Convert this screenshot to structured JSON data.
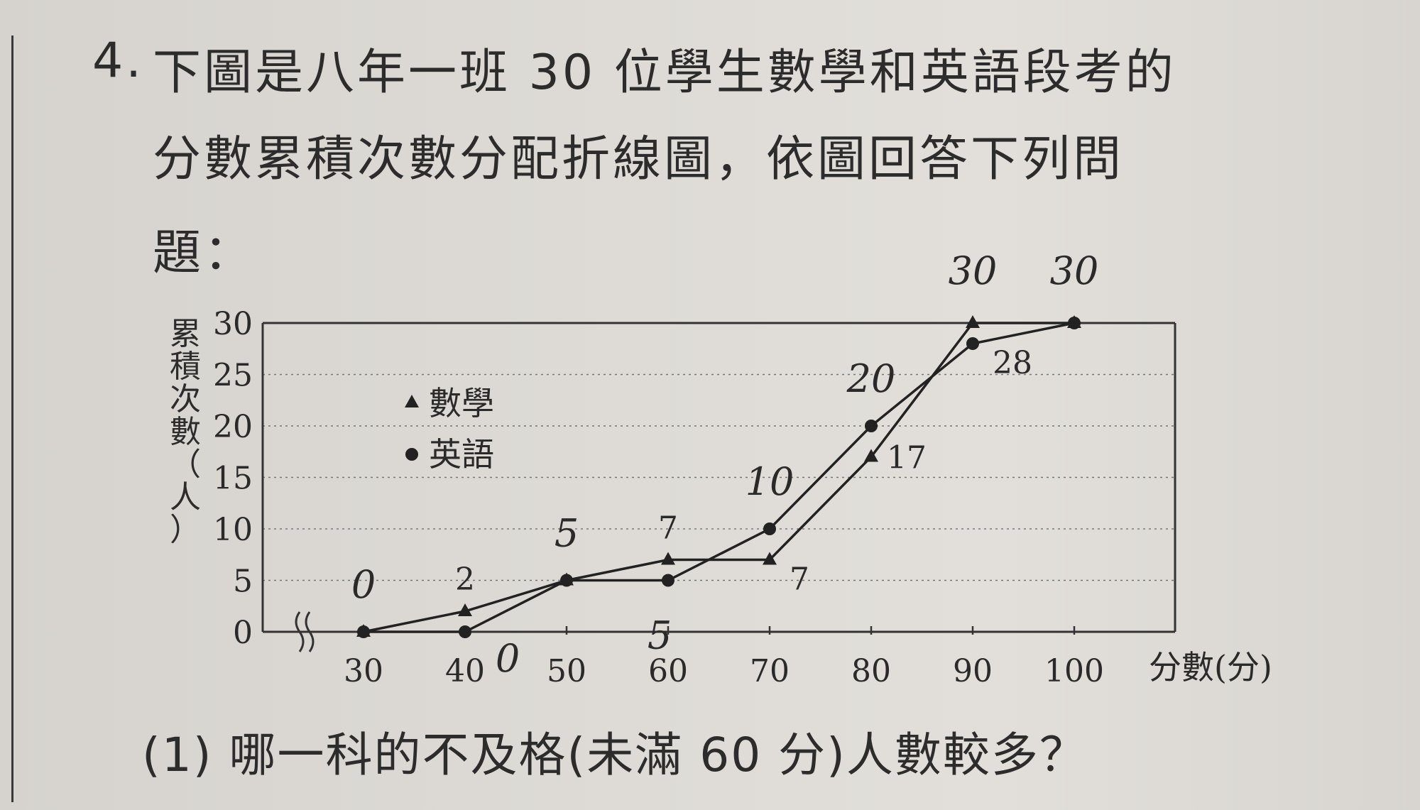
{
  "question": {
    "number": "4.",
    "line1": "下圖是八年一班 30 位學生數學和英語段考的",
    "line2": "分數累積次數分配折線圖，依圖回答下列問",
    "line3": "題：",
    "sub_question": "(1) 哪一科的不及格(未滿 60 分)人數較多？"
  },
  "chart_data": {
    "type": "line",
    "x": [
      30,
      40,
      50,
      60,
      70,
      80,
      90,
      100
    ],
    "xticklabels": [
      "30",
      "40",
      "50",
      "60",
      "70",
      "80",
      "90",
      "100"
    ],
    "xlabel": "分數(分)",
    "ylabel": "累積次數（人）",
    "ylim": [
      0,
      30
    ],
    "yticks": [
      0,
      5,
      10,
      15,
      20,
      25,
      30
    ],
    "axis_break": true,
    "grid": "horizontal dotted",
    "legend_position": "upper-left",
    "series": [
      {
        "name": "數學",
        "marker": "triangle",
        "values": [
          0,
          2,
          5,
          7,
          7,
          17,
          30,
          30
        ]
      },
      {
        "name": "英語",
        "marker": "circle",
        "values": [
          0,
          0,
          5,
          5,
          10,
          20,
          28,
          30
        ]
      }
    ],
    "printed_labels": [
      {
        "series": 0,
        "index": 1,
        "text": "2",
        "pos": "above"
      },
      {
        "series": 0,
        "index": 3,
        "text": "7",
        "pos": "above"
      },
      {
        "series": 0,
        "index": 4,
        "text": "7",
        "pos": "below-right"
      },
      {
        "series": 0,
        "index": 5,
        "text": "17",
        "pos": "right"
      },
      {
        "series": 1,
        "index": 6,
        "text": "28",
        "pos": "below-right"
      }
    ],
    "handwritten_labels": [
      {
        "x": 30,
        "text": "0",
        "pos": "above"
      },
      {
        "x": 40,
        "text": "0",
        "pos": "below-right"
      },
      {
        "x": 50,
        "text": "5",
        "pos": "above"
      },
      {
        "x": 60,
        "text": "5",
        "pos": "below"
      },
      {
        "x": 70,
        "text": "10",
        "pos": "above"
      },
      {
        "x": 80,
        "text": "20",
        "pos": "above"
      },
      {
        "x": 90,
        "text": "30",
        "pos": "top"
      },
      {
        "x": 100,
        "text": "30",
        "pos": "top"
      }
    ]
  }
}
